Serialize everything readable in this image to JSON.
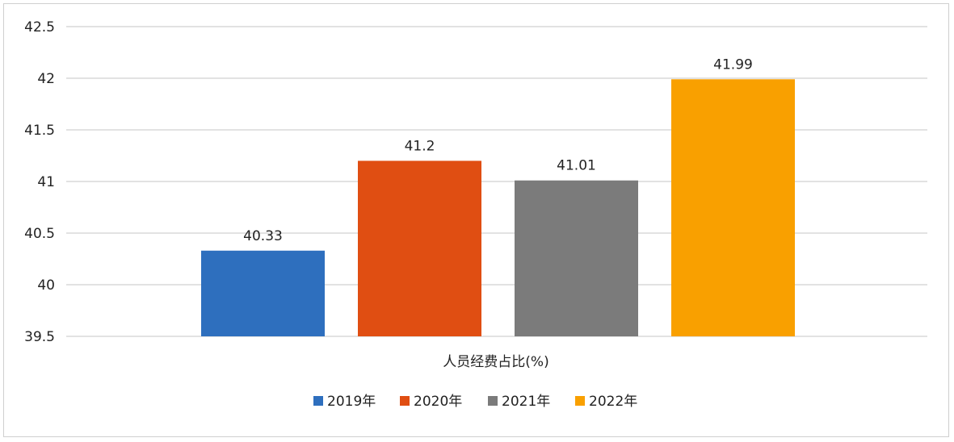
{
  "chart_data": {
    "type": "bar",
    "categories": [
      "人员经费占比(%)"
    ],
    "series": [
      {
        "name": "2019年",
        "values": [
          40.33
        ],
        "color": "#2e6fbe"
      },
      {
        "name": "2020年",
        "values": [
          41.2
        ],
        "color": "#e04e12"
      },
      {
        "name": "2021年",
        "values": [
          41.01
        ],
        "color": "#7b7b7b"
      },
      {
        "name": "2022年",
        "values": [
          41.99
        ],
        "color": "#f9a000"
      }
    ],
    "data_labels": [
      "40.33",
      "41.2",
      "41.01",
      "41.99"
    ],
    "y_ticks": [
      "39.5",
      "40",
      "40.5",
      "41",
      "41.5",
      "42",
      "42.5"
    ],
    "ylim": [
      39.5,
      42.5
    ],
    "title": "",
    "xlabel": "",
    "ylabel": "",
    "grid": true,
    "legend_position": "bottom"
  }
}
